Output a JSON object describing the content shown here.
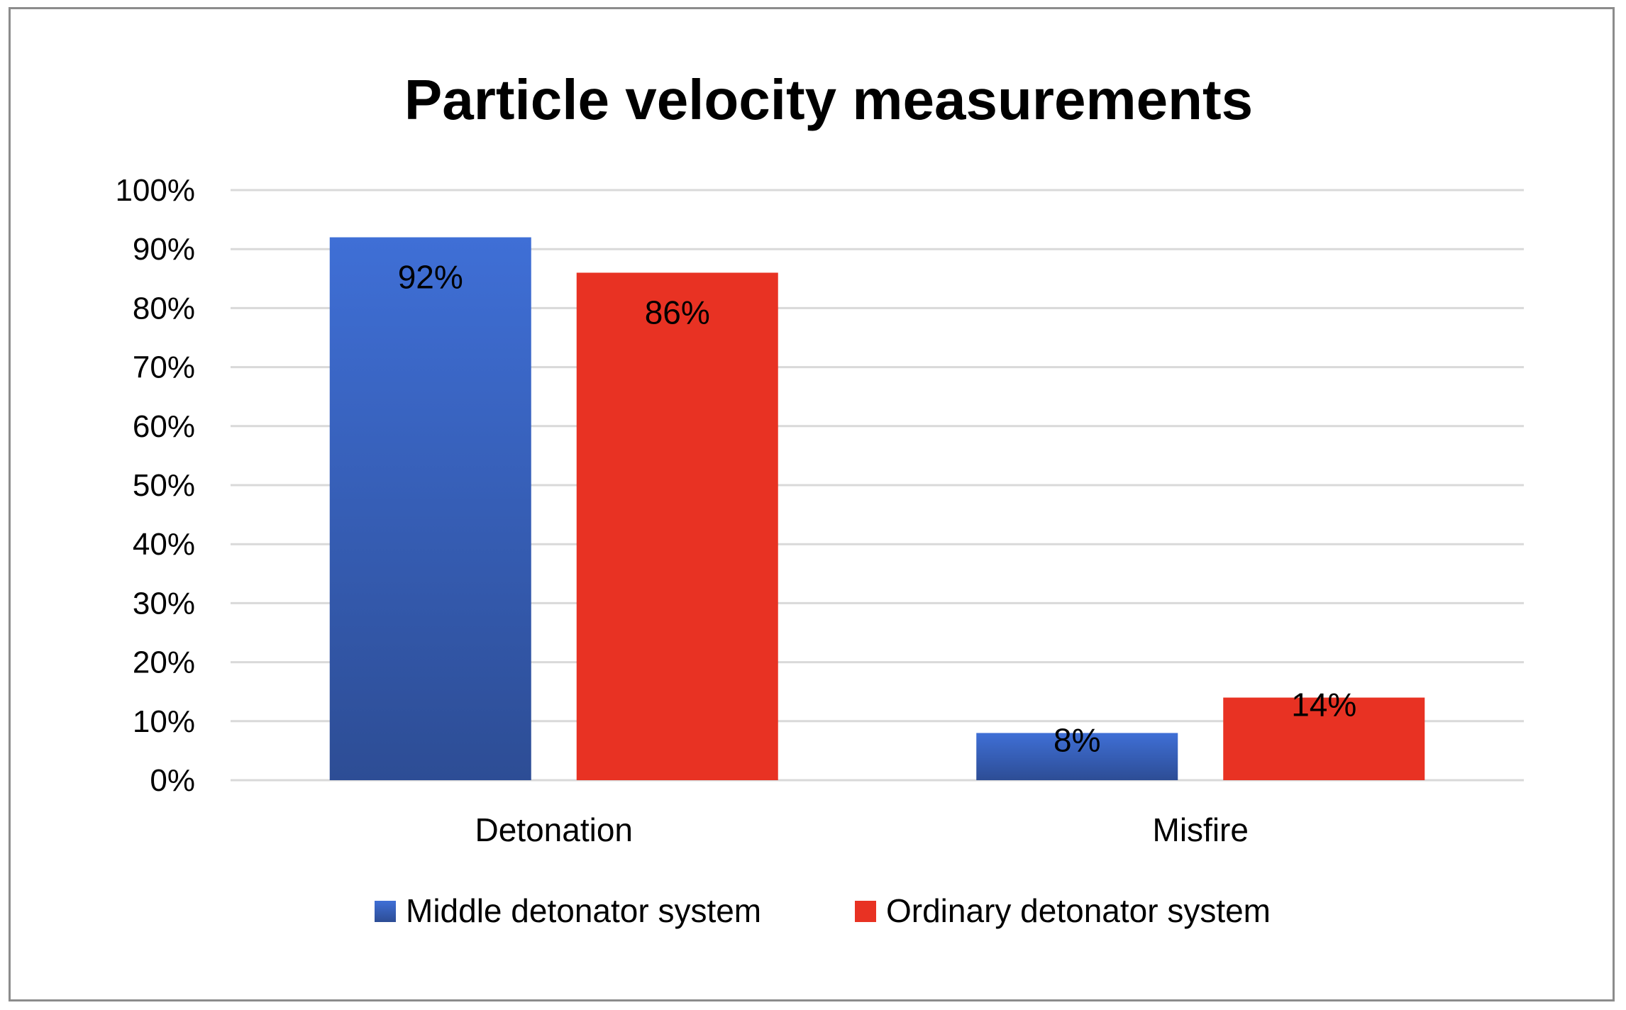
{
  "chart_data": {
    "type": "bar",
    "title": "Particle velocity measurements",
    "xlabel": "",
    "ylabel": "",
    "categories": [
      "Detonation",
      "Misfire"
    ],
    "series": [
      {
        "name": "Middle detonator system",
        "values": [
          92,
          8
        ],
        "labels": [
          "92%",
          "8%"
        ],
        "color": "#3b68c9"
      },
      {
        "name": "Ordinary detonator system",
        "values": [
          86,
          14
        ],
        "labels": [
          "86%",
          "14%"
        ],
        "color": "#e83223"
      }
    ],
    "ylim": [
      0,
      100
    ],
    "yticks": [
      0,
      10,
      20,
      30,
      40,
      50,
      60,
      70,
      80,
      90,
      100
    ],
    "ytick_labels": [
      "0%",
      "10%",
      "20%",
      "30%",
      "40%",
      "50%",
      "60%",
      "70%",
      "80%",
      "90%",
      "100%"
    ],
    "grid": true,
    "legend_position": "bottom"
  }
}
